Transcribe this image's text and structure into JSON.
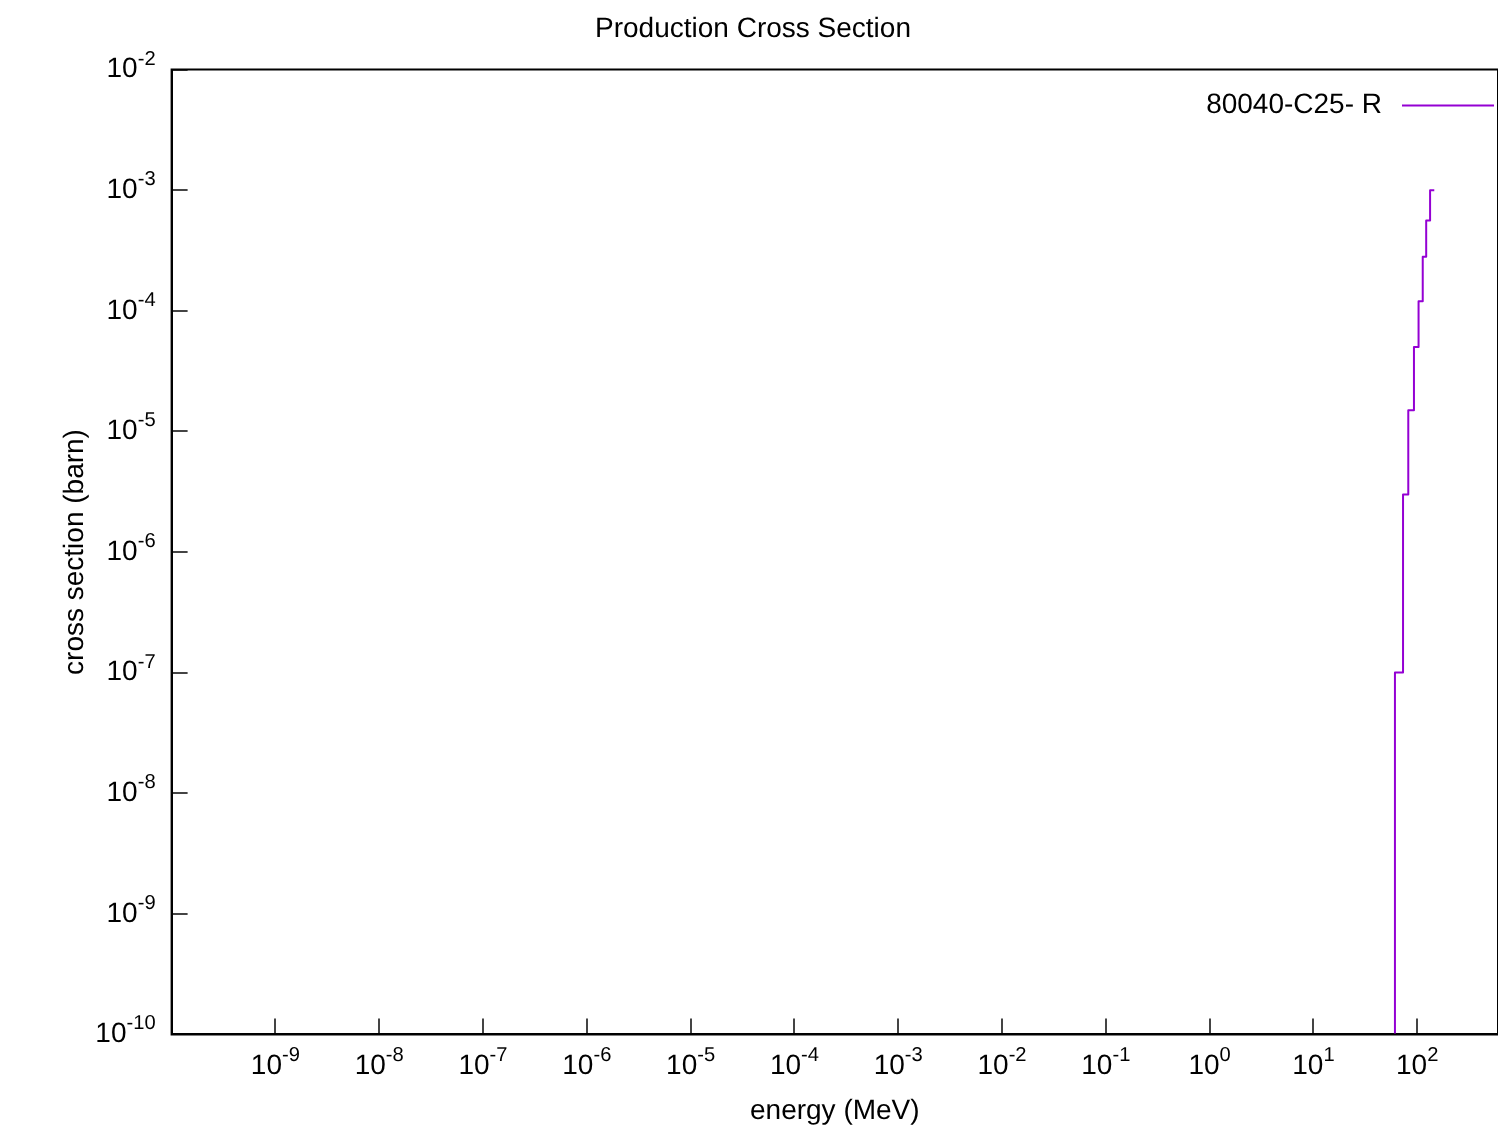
{
  "chart_data": {
    "type": "step",
    "title": "Production Cross Section",
    "xlabel": "energy (MeV)",
    "ylabel": "cross section (barn)",
    "x": [
      61,
      73,
      82,
      93,
      103,
      113,
      122,
      133,
      146
    ],
    "series": [
      {
        "name": "80040-C25- R",
        "color": "#9400d3",
        "values": [
          1e-10,
          1e-07,
          3e-06,
          1.5e-05,
          5e-05,
          0.00012,
          0.00028,
          0.00056,
          0.001
        ]
      }
    ],
    "log": "xy",
    "xlim": [
      1e-10,
      600
    ],
    "ylim": [
      1e-10,
      0.01
    ],
    "xticks": [
      {
        "value": 1e-09,
        "label": "10$^{-9}$"
      },
      {
        "value": 1e-08,
        "label": "10$^{-8}$"
      },
      {
        "value": 1e-07,
        "label": "10$^{-7}$"
      },
      {
        "value": 1e-06,
        "label": "10$^{-6}$"
      },
      {
        "value": 1e-05,
        "label": "10$^{-5}$"
      },
      {
        "value": 0.0001,
        "label": "10$^{-4}$"
      },
      {
        "value": 0.001,
        "label": "10$^{-3}$"
      },
      {
        "value": 0.01,
        "label": "10$^{-2}$"
      },
      {
        "value": 0.1,
        "label": "10$^{-1}$"
      },
      {
        "value": 1,
        "label": "10$^{0}$"
      },
      {
        "value": 10,
        "label": "10$^{1}$"
      },
      {
        "value": 100,
        "label": "10$^{2}$"
      }
    ],
    "yticks": [
      {
        "value": 1e-10,
        "label": "10$^{-10}$"
      },
      {
        "value": 1e-09,
        "label": "10$^{-9}$"
      },
      {
        "value": 1e-08,
        "label": "10$^{-8}$"
      },
      {
        "value": 1e-07,
        "label": "10$^{-7}$"
      },
      {
        "value": 1e-06,
        "label": "10$^{-6}$"
      },
      {
        "value": 1e-05,
        "label": "10$^{-5}$"
      },
      {
        "value": 0.0001,
        "label": "10$^{-4}$"
      },
      {
        "value": 0.001,
        "label": "10$^{-3}$"
      },
      {
        "value": 0.01,
        "label": "10$^{-2}$"
      }
    ],
    "grid": false,
    "legend": "top right",
    "marker": "none",
    "line_style": "solid"
  }
}
